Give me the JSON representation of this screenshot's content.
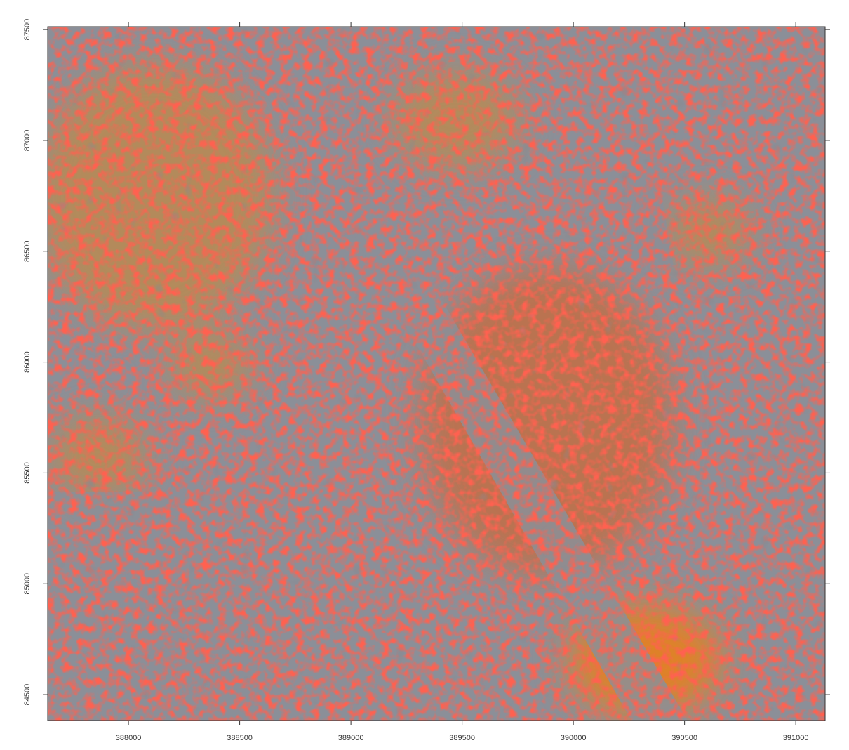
{
  "map": {
    "xlim": [
      387637,
      391132
    ],
    "ylim": [
      84383,
      87513
    ],
    "xticks": [
      388000,
      388500,
      389000,
      389500,
      390000,
      390500,
      391000
    ],
    "yticks": [
      84500,
      85000,
      85500,
      86000,
      86500,
      87000,
      87500
    ]
  }
}
